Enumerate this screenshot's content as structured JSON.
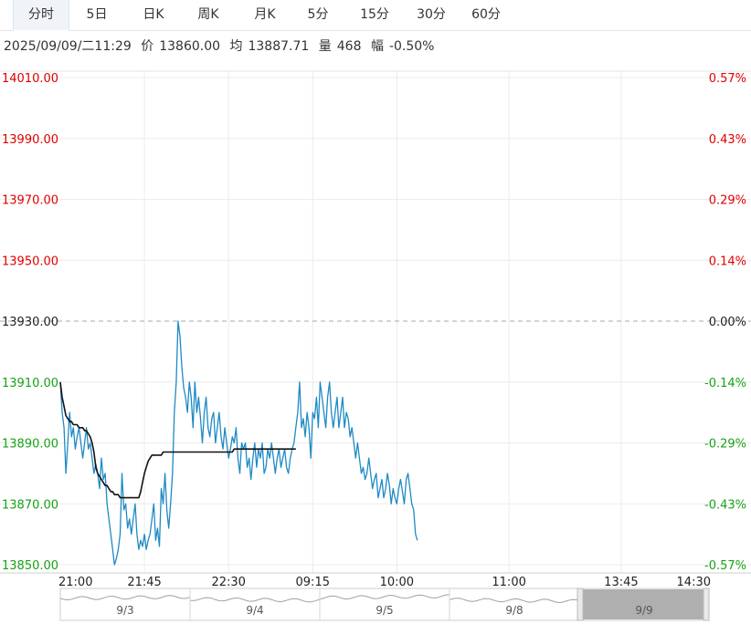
{
  "tabs": [
    {
      "label": "分时",
      "active": true
    },
    {
      "label": "5日",
      "active": false
    },
    {
      "label": "日K",
      "active": false
    },
    {
      "label": "周K",
      "active": false
    },
    {
      "label": "月K",
      "active": false
    },
    {
      "label": "5分",
      "active": false
    },
    {
      "label": "15分",
      "active": false
    },
    {
      "label": "30分",
      "active": false
    },
    {
      "label": "60分",
      "active": false
    }
  ],
  "info": {
    "datetime": "2025/09/09/二11:29",
    "price_label": "价",
    "price": "13860.00",
    "avg_label": "均",
    "avg": "13887.71",
    "volume_label": "量",
    "volume": "468",
    "change_label": "幅",
    "change": "-0.50%"
  },
  "colors": {
    "up": "#e00000",
    "down": "#17a317",
    "flat": "#222222",
    "price_line": "#1f8ac4",
    "avg_line": "#111111",
    "grid": "#ececec"
  },
  "chart_data": {
    "type": "line",
    "prev_close": 13930,
    "ylim": [
      13850,
      14010
    ],
    "y_ticks": [
      "14010.00",
      "13990.00",
      "13970.00",
      "13950.00",
      "13930.00",
      "13910.00",
      "13890.00",
      "13870.00",
      "13850.00"
    ],
    "y_tick_values": [
      14010,
      13990,
      13970,
      13950,
      13930,
      13910,
      13890,
      13870,
      13850
    ],
    "pct_ticks": [
      "0.57%",
      "0.43%",
      "0.29%",
      "0.14%",
      "0.00%",
      "-0.14%",
      "-0.29%",
      "-0.43%",
      "-0.57%"
    ],
    "x_ticks": [
      "21:00",
      "21:45",
      "22:30",
      "09:15",
      "10:00",
      "11:00",
      "13:45",
      "14:30"
    ],
    "minutes_total": 345,
    "series": [
      {
        "key": "price",
        "values": [
          13910,
          13900,
          13895,
          13880,
          13890,
          13900,
          13892,
          13895,
          13888,
          13892,
          13895,
          13890,
          13885,
          13890,
          13895,
          13888,
          13890,
          13885,
          13880,
          13883,
          13880,
          13875,
          13885,
          13878,
          13880,
          13870,
          13865,
          13860,
          13855,
          13850,
          13852,
          13855,
          13860,
          13880,
          13868,
          13870,
          13862,
          13865,
          13860,
          13865,
          13870,
          13860,
          13855,
          13858,
          13856,
          13860,
          13855,
          13858,
          13860,
          13865,
          13870,
          13858,
          13862,
          13856,
          13875,
          13870,
          13880,
          13868,
          13862,
          13870,
          13880,
          13900,
          13910,
          13930,
          13925,
          13915,
          13908,
          13905,
          13900,
          13910,
          13905,
          13895,
          13910,
          13900,
          13905,
          13898,
          13890,
          13900,
          13905,
          13895,
          13892,
          13898,
          13900,
          13890,
          13895,
          13900,
          13892,
          13888,
          13895,
          13890,
          13885,
          13888,
          13892,
          13890,
          13895,
          13885,
          13880,
          13890,
          13888,
          13890,
          13882,
          13885,
          13878,
          13885,
          13890,
          13882,
          13888,
          13885,
          13890,
          13880,
          13882,
          13888,
          13885,
          13890,
          13885,
          13880,
          13885,
          13888,
          13882,
          13885,
          13888,
          13882,
          13880,
          13885,
          13888,
          13890,
          13895,
          13900,
          13910,
          13895,
          13898,
          13892,
          13900,
          13895,
          13885,
          13900,
          13898,
          13905,
          13895,
          13910,
          13905,
          13900,
          13895,
          13905,
          13910,
          13900,
          13895,
          13900,
          13905,
          13895,
          13900,
          13905,
          13895,
          13900,
          13898,
          13892,
          13895,
          13890,
          13885,
          13890,
          13885,
          13880,
          13882,
          13878,
          13880,
          13885,
          13880,
          13875,
          13878,
          13880,
          13872,
          13875,
          13878,
          13872,
          13875,
          13880,
          13876,
          13870,
          13875,
          13872,
          13870,
          13875,
          13878,
          13874,
          13870,
          13878,
          13880,
          13875,
          13870,
          13868,
          13860,
          13858
        ]
      },
      {
        "key": "avg",
        "values": [
          13910,
          13905,
          13902,
          13899,
          13898,
          13897,
          13897,
          13896,
          13896,
          13896,
          13895,
          13895,
          13895,
          13894,
          13894,
          13893,
          13892,
          13890,
          13887,
          13882,
          13880,
          13879,
          13878,
          13877,
          13876,
          13876,
          13875,
          13874,
          13874,
          13873,
          13873,
          13873,
          13872,
          13872,
          13872,
          13872,
          13872,
          13872,
          13872,
          13872,
          13872,
          13872,
          13872,
          13874,
          13877,
          13880,
          13882,
          13884,
          13885,
          13886,
          13886,
          13886,
          13886,
          13886,
          13886,
          13887,
          13887,
          13887,
          13887,
          13887,
          13887,
          13887,
          13887,
          13887,
          13887,
          13887,
          13887,
          13887,
          13887,
          13887,
          13887,
          13887,
          13887,
          13887,
          13887,
          13887,
          13887,
          13887,
          13887,
          13887,
          13887,
          13887,
          13887,
          13887,
          13887,
          13887,
          13887,
          13887,
          13887,
          13887,
          13887,
          13887,
          13887,
          13888,
          13888,
          13888,
          13888,
          13888,
          13888,
          13888,
          13888,
          13888,
          13888,
          13888,
          13888,
          13888,
          13888,
          13888,
          13888,
          13888,
          13888,
          13888,
          13888,
          13888,
          13888,
          13888,
          13888,
          13888,
          13888,
          13888,
          13888,
          13888,
          13888,
          13888,
          13888,
          13888,
          13888
        ]
      }
    ],
    "navigator_labels": [
      "9/3",
      "9/4",
      "9/5",
      "9/8",
      "9/9"
    ]
  }
}
